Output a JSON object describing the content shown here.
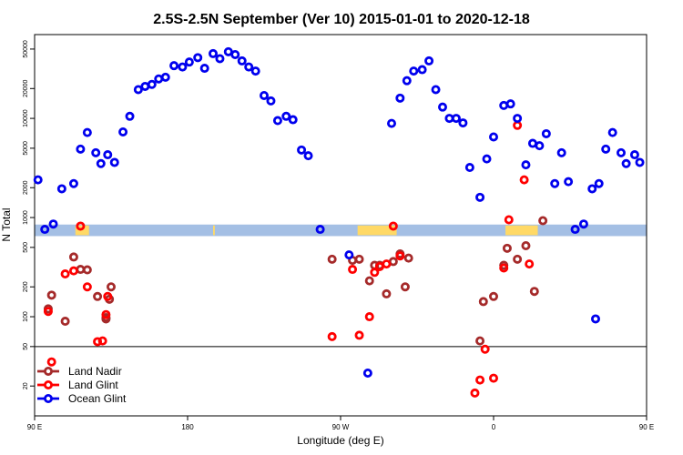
{
  "chart_data": {
    "type": "scatter",
    "title": "2.5S-2.5N September (Ver 10)   2015-01-01 to 2020-12-18",
    "xlabel": "Longitude (deg E)",
    "ylabel": "N Total",
    "xlim": [
      90,
      450
    ],
    "ylim_log": [
      10,
      70000
    ],
    "y_scale": "log",
    "x_ticks": [
      {
        "value": 90,
        "label": "90 E"
      },
      {
        "value": 180,
        "label": "180"
      },
      {
        "value": 270,
        "label": "90 W"
      },
      {
        "value": 360,
        "label": "0"
      },
      {
        "value": 450,
        "label": "90 E"
      },
      {
        "value": 540,
        "label": "180"
      }
    ],
    "y_ticks": [
      {
        "value": 20,
        "label": "20"
      },
      {
        "value": 50,
        "label": "50"
      },
      {
        "value": 100,
        "label": "100"
      },
      {
        "value": 200,
        "label": "200"
      },
      {
        "value": 500,
        "label": "500"
      },
      {
        "value": 1000,
        "label": "1000"
      },
      {
        "value": 2000,
        "label": "2000"
      },
      {
        "value": 5000,
        "label": "5000"
      },
      {
        "value": 10000,
        "label": "10000"
      },
      {
        "value": 20000,
        "label": "20000"
      },
      {
        "value": 50000,
        "label": "50000"
      }
    ],
    "reference_line_y": 50,
    "legend": {
      "placement": "bottom-left",
      "entries": [
        "Land Nadir",
        "Land Glint",
        "Ocean Glint"
      ]
    },
    "colors": {
      "land_nadir": "#a52a2a",
      "land_glint": "#ff0000",
      "ocean_glint": "#0000ee",
      "band_blue": "#a4bfe4",
      "band_yellow": "#ffd966"
    },
    "band": {
      "y_low": 650,
      "y_high": 850
    },
    "band_yellow_segments": [
      [
        114,
        122
      ],
      [
        195,
        196
      ],
      [
        280,
        303
      ],
      [
        367,
        386
      ],
      [
        378,
        380
      ],
      [
        475,
        488
      ],
      [
        492,
        494
      ]
    ],
    "series": [
      {
        "name": "Land Nadir",
        "points": [
          [
            98,
            120
          ],
          [
            100,
            165
          ],
          [
            108,
            90
          ],
          [
            113,
            400
          ],
          [
            117,
            300
          ],
          [
            121,
            297
          ],
          [
            127,
            160
          ],
          [
            132,
            98
          ],
          [
            134,
            150
          ],
          [
            132,
            95
          ],
          [
            135,
            200
          ],
          [
            265,
            380
          ],
          [
            277,
            370
          ],
          [
            281,
            380
          ],
          [
            287,
            230
          ],
          [
            290,
            330
          ],
          [
            293,
            330
          ],
          [
            297,
            170
          ],
          [
            301,
            360
          ],
          [
            305,
            430
          ],
          [
            308,
            200
          ],
          [
            310,
            390
          ],
          [
            352,
            57
          ],
          [
            354,
            142
          ],
          [
            360,
            160
          ],
          [
            366,
            330
          ],
          [
            368,
            490
          ],
          [
            374,
            380
          ],
          [
            379,
            520
          ],
          [
            384,
            180
          ],
          [
            389,
            930
          ],
          [
            454,
            120
          ],
          [
            456,
            165
          ],
          [
            460,
            90
          ],
          [
            465,
            400
          ],
          [
            469,
            300
          ],
          [
            473,
            297
          ],
          [
            476,
            17
          ]
        ]
      },
      {
        "name": "Land Glint",
        "points": [
          [
            98,
            113
          ],
          [
            100,
            35
          ],
          [
            108,
            270
          ],
          [
            113,
            290
          ],
          [
            117,
            820
          ],
          [
            121,
            200
          ],
          [
            127,
            56
          ],
          [
            132,
            105
          ],
          [
            130,
            57
          ],
          [
            133,
            160
          ],
          [
            265,
            63
          ],
          [
            277,
            300
          ],
          [
            281,
            65
          ],
          [
            287,
            100
          ],
          [
            290,
            280
          ],
          [
            293,
            320
          ],
          [
            297,
            340
          ],
          [
            301,
            820
          ],
          [
            305,
            410
          ],
          [
            349,
            17
          ],
          [
            352,
            23
          ],
          [
            355,
            47
          ],
          [
            360,
            24
          ],
          [
            366,
            310
          ],
          [
            369,
            950
          ],
          [
            374,
            8500
          ],
          [
            378,
            2400
          ],
          [
            381,
            340
          ],
          [
            454,
            113
          ],
          [
            456,
            35
          ],
          [
            460,
            270
          ],
          [
            465,
            290
          ],
          [
            469,
            820
          ],
          [
            473,
            200
          ],
          [
            476,
            56
          ],
          [
            478,
            105
          ]
        ]
      },
      {
        "name": "Ocean Glint",
        "points": [
          [
            92,
            2400
          ],
          [
            96,
            760
          ],
          [
            101,
            860
          ],
          [
            106,
            1950
          ],
          [
            113,
            2200
          ],
          [
            117,
            4900
          ],
          [
            121,
            7200
          ],
          [
            126,
            4500
          ],
          [
            129,
            3500
          ],
          [
            133,
            4300
          ],
          [
            137,
            3600
          ],
          [
            142,
            7300
          ],
          [
            146,
            10500
          ],
          [
            151,
            19500
          ],
          [
            155,
            21000
          ],
          [
            159,
            22000
          ],
          [
            163,
            25000
          ],
          [
            167,
            26000
          ],
          [
            172,
            34000
          ],
          [
            177,
            33000
          ],
          [
            181,
            37000
          ],
          [
            186,
            41000
          ],
          [
            190,
            32000
          ],
          [
            195,
            45000
          ],
          [
            199,
            40000
          ],
          [
            204,
            47000
          ],
          [
            208,
            44000
          ],
          [
            212,
            38000
          ],
          [
            216,
            33000
          ],
          [
            220,
            30000
          ],
          [
            225,
            17000
          ],
          [
            229,
            15000
          ],
          [
            233,
            9500
          ],
          [
            238,
            10500
          ],
          [
            242,
            9700
          ],
          [
            247,
            4800
          ],
          [
            251,
            4200
          ],
          [
            258,
            760
          ],
          [
            275,
            420
          ],
          [
            286,
            27
          ],
          [
            300,
            8900
          ],
          [
            305,
            16000
          ],
          [
            309,
            24000
          ],
          [
            313,
            30000
          ],
          [
            318,
            31000
          ],
          [
            322,
            38000
          ],
          [
            326,
            19500
          ],
          [
            330,
            13000
          ],
          [
            334,
            10000
          ],
          [
            338,
            10000
          ],
          [
            342,
            9000
          ],
          [
            346,
            3200
          ],
          [
            352,
            1600
          ],
          [
            356,
            3900
          ],
          [
            360,
            6500
          ],
          [
            366,
            13500
          ],
          [
            370,
            14000
          ],
          [
            374,
            10000
          ],
          [
            379,
            3400
          ],
          [
            383,
            5600
          ],
          [
            387,
            5300
          ],
          [
            391,
            7000
          ],
          [
            396,
            2200
          ],
          [
            400,
            4500
          ],
          [
            404,
            2300
          ],
          [
            408,
            760
          ],
          [
            413,
            860
          ],
          [
            418,
            1950
          ],
          [
            422,
            2200
          ],
          [
            426,
            4900
          ],
          [
            430,
            7200
          ],
          [
            435,
            4500
          ],
          [
            438,
            3500
          ],
          [
            443,
            4300
          ],
          [
            446,
            3600
          ],
          [
            451,
            7300
          ],
          [
            455,
            10500
          ],
          [
            460,
            19500
          ],
          [
            464,
            21000
          ],
          [
            468,
            22000
          ],
          [
            472,
            25000
          ],
          [
            420,
            95
          ]
        ]
      }
    ]
  }
}
